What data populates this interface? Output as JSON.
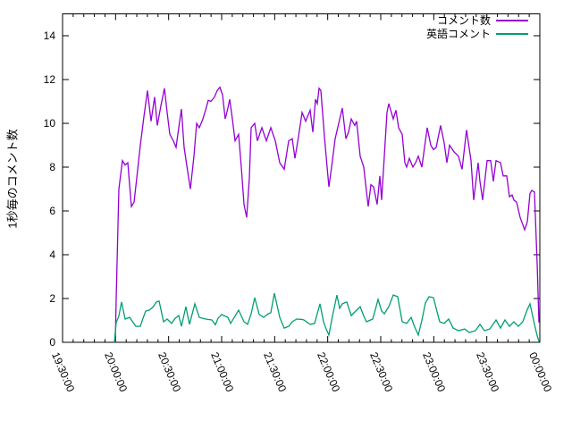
{
  "figure": {
    "background": "#ffffff",
    "axis_color": "#000000"
  },
  "chart_data": {
    "type": "line",
    "title": "",
    "xlabel": "",
    "ylabel": "1秒毎のコメント数",
    "x_unit": "seconds since 19:30:00",
    "xlim": [
      0,
      16200
    ],
    "ylim": [
      0,
      15
    ],
    "yticks": [
      0,
      2,
      4,
      6,
      8,
      10,
      12,
      14
    ],
    "x_minor_step": 360,
    "grid": false,
    "legend_position": "top-right-inside",
    "xticks": [
      {
        "t": 0,
        "label": "19:30:00"
      },
      {
        "t": 1800,
        "label": "20:00:00"
      },
      {
        "t": 3600,
        "label": "20:30:00"
      },
      {
        "t": 5400,
        "label": "21:00:00"
      },
      {
        "t": 7200,
        "label": "21:30:00"
      },
      {
        "t": 9000,
        "label": "22:00:00"
      },
      {
        "t": 10800,
        "label": "22:30:00"
      },
      {
        "t": 12600,
        "label": "23:00:00"
      },
      {
        "t": 14400,
        "label": "23:30:00"
      },
      {
        "t": 16200,
        "label": "00:00:00"
      }
    ],
    "series": [
      {
        "name": "コメント数",
        "color": "#9400d3",
        "points": [
          [
            1790,
            0
          ],
          [
            1820,
            2.0
          ],
          [
            1911,
            7.0
          ],
          [
            2033,
            8.3
          ],
          [
            2124,
            8.1
          ],
          [
            2215,
            8.2
          ],
          [
            2336,
            6.2
          ],
          [
            2427,
            6.4
          ],
          [
            2518,
            7.5
          ],
          [
            2639,
            9.0
          ],
          [
            2761,
            10.3
          ],
          [
            2882,
            11.5
          ],
          [
            3003,
            10.1
          ],
          [
            3125,
            11.2
          ],
          [
            3216,
            9.9
          ],
          [
            3337,
            10.8
          ],
          [
            3458,
            11.6
          ],
          [
            3549,
            10.5
          ],
          [
            3640,
            9.5
          ],
          [
            3762,
            9.2
          ],
          [
            3853,
            8.9
          ],
          [
            3944,
            9.8
          ],
          [
            4035,
            10.65
          ],
          [
            4126,
            8.9
          ],
          [
            4247,
            7.8
          ],
          [
            4338,
            7.0
          ],
          [
            4460,
            8.5
          ],
          [
            4551,
            10.0
          ],
          [
            4642,
            9.8
          ],
          [
            4763,
            10.2
          ],
          [
            4854,
            10.6
          ],
          [
            4945,
            11.05
          ],
          [
            5036,
            11.0
          ],
          [
            5157,
            11.2
          ],
          [
            5248,
            11.5
          ],
          [
            5339,
            11.65
          ],
          [
            5430,
            11.3
          ],
          [
            5521,
            10.2
          ],
          [
            5612,
            10.7
          ],
          [
            5673,
            11.1
          ],
          [
            5764,
            10.2
          ],
          [
            5855,
            9.2
          ],
          [
            5976,
            9.5
          ],
          [
            6067,
            8.0
          ],
          [
            6158,
            6.3
          ],
          [
            6249,
            5.7
          ],
          [
            6340,
            7.5
          ],
          [
            6401,
            9.8
          ],
          [
            6522,
            10.0
          ],
          [
            6613,
            9.2
          ],
          [
            6765,
            9.8
          ],
          [
            6917,
            9.2
          ],
          [
            7068,
            9.8
          ],
          [
            7220,
            9.2
          ],
          [
            7372,
            8.2
          ],
          [
            7523,
            7.9
          ],
          [
            7675,
            9.2
          ],
          [
            7796,
            9.3
          ],
          [
            7887,
            8.4
          ],
          [
            8009,
            9.4
          ],
          [
            8130,
            10.5
          ],
          [
            8251,
            10.1
          ],
          [
            8403,
            10.6
          ],
          [
            8494,
            9.6
          ],
          [
            8585,
            11.1
          ],
          [
            8646,
            10.9
          ],
          [
            8706,
            11.6
          ],
          [
            8767,
            11.5
          ],
          [
            8888,
            9.4
          ],
          [
            8979,
            8.0
          ],
          [
            9040,
            7.1
          ],
          [
            9131,
            8.0
          ],
          [
            9252,
            9.3
          ],
          [
            9373,
            10.0
          ],
          [
            9495,
            10.7
          ],
          [
            9616,
            9.3
          ],
          [
            9707,
            9.6
          ],
          [
            9798,
            10.2
          ],
          [
            9919,
            9.9
          ],
          [
            9980,
            10.1
          ],
          [
            10101,
            8.5
          ],
          [
            10223,
            8.0
          ],
          [
            10314,
            6.9
          ],
          [
            10374,
            6.2
          ],
          [
            10465,
            7.2
          ],
          [
            10556,
            7.1
          ],
          [
            10678,
            6.3
          ],
          [
            10769,
            7.6
          ],
          [
            10829,
            6.5
          ],
          [
            10920,
            8.5
          ],
          [
            11011,
            10.5
          ],
          [
            11072,
            10.9
          ],
          [
            11224,
            10.2
          ],
          [
            11315,
            10.6
          ],
          [
            11406,
            9.8
          ],
          [
            11527,
            9.5
          ],
          [
            11618,
            8.2
          ],
          [
            11679,
            8.0
          ],
          [
            11770,
            8.4
          ],
          [
            11891,
            8.0
          ],
          [
            11982,
            8.2
          ],
          [
            12073,
            8.5
          ],
          [
            12195,
            8.0
          ],
          [
            12286,
            8.9
          ],
          [
            12377,
            9.8
          ],
          [
            12498,
            9.0
          ],
          [
            12589,
            8.8
          ],
          [
            12680,
            8.9
          ],
          [
            12832,
            9.9
          ],
          [
            12953,
            9.1
          ],
          [
            13044,
            8.2
          ],
          [
            13135,
            9.0
          ],
          [
            13287,
            8.7
          ],
          [
            13439,
            8.5
          ],
          [
            13560,
            7.9
          ],
          [
            13712,
            9.7
          ],
          [
            13863,
            8.3
          ],
          [
            13954,
            6.5
          ],
          [
            14106,
            8.2
          ],
          [
            14167,
            7.35
          ],
          [
            14258,
            6.5
          ],
          [
            14409,
            8.3
          ],
          [
            14531,
            8.3
          ],
          [
            14622,
            7.35
          ],
          [
            14713,
            8.3
          ],
          [
            14864,
            8.2
          ],
          [
            14955,
            7.6
          ],
          [
            15077,
            7.6
          ],
          [
            15168,
            6.65
          ],
          [
            15259,
            6.73
          ],
          [
            15319,
            6.5
          ],
          [
            15410,
            6.4
          ],
          [
            15532,
            5.7
          ],
          [
            15683,
            5.14
          ],
          [
            15774,
            5.5
          ],
          [
            15865,
            6.8
          ],
          [
            15926,
            6.94
          ],
          [
            16017,
            6.86
          ],
          [
            16108,
            3.6
          ],
          [
            16169,
            0.9
          ]
        ]
      },
      {
        "name": "英語コメント",
        "color": "#009e73",
        "points": [
          [
            1759,
            0
          ],
          [
            1820,
            0.9
          ],
          [
            1911,
            1.2
          ],
          [
            2002,
            1.84
          ],
          [
            2124,
            1.06
          ],
          [
            2275,
            1.14
          ],
          [
            2397,
            0.9
          ],
          [
            2488,
            0.73
          ],
          [
            2639,
            0.73
          ],
          [
            2730,
            1.1
          ],
          [
            2821,
            1.43
          ],
          [
            2943,
            1.47
          ],
          [
            3064,
            1.6
          ],
          [
            3185,
            1.84
          ],
          [
            3276,
            1.88
          ],
          [
            3428,
            0.94
          ],
          [
            3549,
            1.06
          ],
          [
            3701,
            0.86
          ],
          [
            3822,
            1.1
          ],
          [
            3944,
            1.22
          ],
          [
            4035,
            0.73
          ],
          [
            4186,
            1.63
          ],
          [
            4308,
            0.82
          ],
          [
            4490,
            1.76
          ],
          [
            4642,
            1.14
          ],
          [
            4854,
            1.06
          ],
          [
            5066,
            1.02
          ],
          [
            5188,
            0.8
          ],
          [
            5279,
            1.1
          ],
          [
            5400,
            1.27
          ],
          [
            5612,
            1.14
          ],
          [
            5703,
            0.86
          ],
          [
            5855,
            1.2
          ],
          [
            5976,
            1.47
          ],
          [
            6158,
            0.94
          ],
          [
            6279,
            0.82
          ],
          [
            6401,
            1.3
          ],
          [
            6522,
            2.04
          ],
          [
            6674,
            1.27
          ],
          [
            6825,
            1.14
          ],
          [
            6977,
            1.3
          ],
          [
            7068,
            1.35
          ],
          [
            7189,
            2.24
          ],
          [
            7372,
            1.14
          ],
          [
            7523,
            0.65
          ],
          [
            7675,
            0.73
          ],
          [
            7796,
            0.94
          ],
          [
            7948,
            1.06
          ],
          [
            8099,
            1.05
          ],
          [
            8190,
            1.02
          ],
          [
            8403,
            0.82
          ],
          [
            8554,
            0.86
          ],
          [
            8736,
            1.76
          ],
          [
            8858,
            0.94
          ],
          [
            8949,
            0.6
          ],
          [
            9040,
            0.33
          ],
          [
            9161,
            1.2
          ],
          [
            9313,
            2.16
          ],
          [
            9404,
            1.55
          ],
          [
            9495,
            1.76
          ],
          [
            9646,
            1.84
          ],
          [
            9798,
            1.22
          ],
          [
            9950,
            1.43
          ],
          [
            10101,
            1.63
          ],
          [
            10223,
            1.2
          ],
          [
            10314,
            0.94
          ],
          [
            10526,
            1.06
          ],
          [
            10617,
            1.5
          ],
          [
            10708,
            1.96
          ],
          [
            10829,
            1.43
          ],
          [
            10920,
            1.3
          ],
          [
            11072,
            1.63
          ],
          [
            11224,
            2.16
          ],
          [
            11376,
            2.08
          ],
          [
            11527,
            0.94
          ],
          [
            11679,
            0.86
          ],
          [
            11831,
            1.14
          ],
          [
            11952,
            0.7
          ],
          [
            12073,
            0.33
          ],
          [
            12195,
            1.0
          ],
          [
            12316,
            1.8
          ],
          [
            12437,
            2.08
          ],
          [
            12589,
            2.04
          ],
          [
            12710,
            1.4
          ],
          [
            12801,
            0.94
          ],
          [
            12953,
            0.86
          ],
          [
            13105,
            1.06
          ],
          [
            13256,
            0.65
          ],
          [
            13439,
            0.53
          ],
          [
            13651,
            0.61
          ],
          [
            13803,
            0.45
          ],
          [
            14015,
            0.53
          ],
          [
            14167,
            0.82
          ],
          [
            14318,
            0.53
          ],
          [
            14500,
            0.61
          ],
          [
            14713,
            1.02
          ],
          [
            14864,
            0.65
          ],
          [
            15016,
            1.02
          ],
          [
            15168,
            0.73
          ],
          [
            15319,
            0.94
          ],
          [
            15471,
            0.73
          ],
          [
            15622,
            0.94
          ],
          [
            15774,
            1.5
          ],
          [
            15865,
            1.76
          ],
          [
            16017,
            0.82
          ],
          [
            16108,
            0.3
          ],
          [
            16169,
            0.04
          ]
        ]
      }
    ]
  }
}
